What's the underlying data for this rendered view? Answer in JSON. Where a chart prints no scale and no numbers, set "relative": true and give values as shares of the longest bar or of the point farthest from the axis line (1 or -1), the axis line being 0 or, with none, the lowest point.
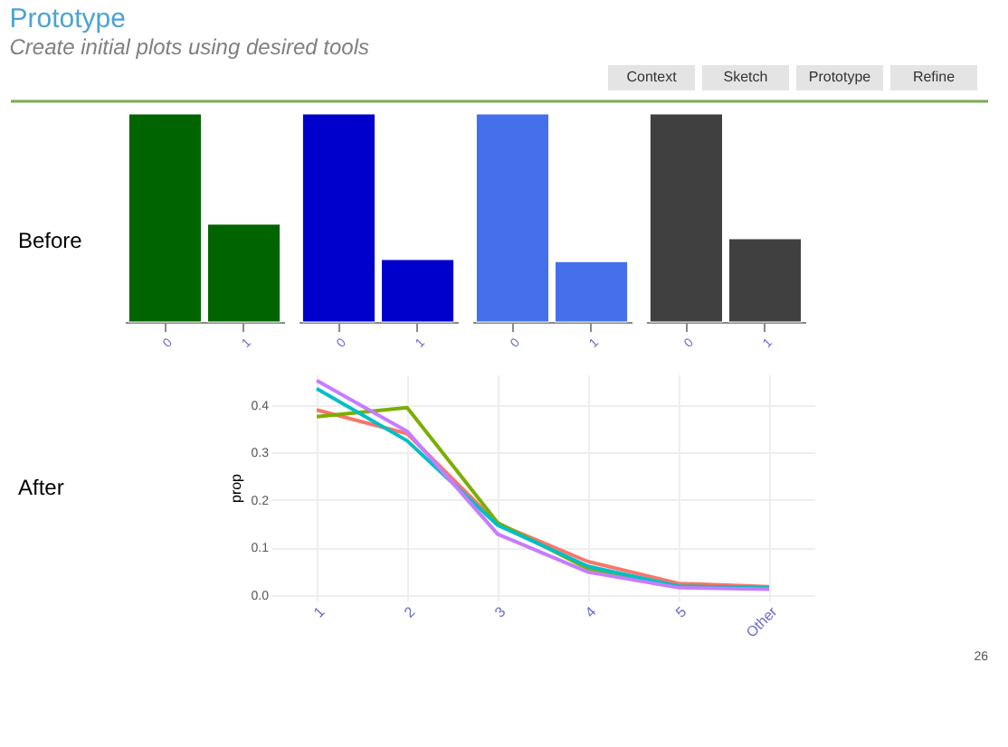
{
  "chart_data": [
    {
      "type": "other",
      "title": "Prototype",
      "subtitle": "Create initial plots using desired tools",
      "annotations": [
        "Context",
        "Sketch",
        "Prototype",
        "Refine",
        "26"
      ]
    },
    {
      "type": "bar",
      "relative": true,
      "categories": [
        "0",
        "1"
      ],
      "values": [
        1,
        0.47
      ],
      "color": "#006400",
      "annotations": [
        "Before"
      ]
    },
    {
      "type": "bar",
      "relative": true,
      "categories": [
        "0",
        "1"
      ],
      "values": [
        1,
        0.3
      ],
      "color": "#0000cd"
    },
    {
      "type": "bar",
      "relative": true,
      "categories": [
        "0",
        "1"
      ],
      "values": [
        1,
        0.29
      ],
      "color": "#4570ec"
    },
    {
      "type": "bar",
      "relative": true,
      "categories": [
        "0",
        "1"
      ],
      "values": [
        1,
        0.4
      ],
      "color": "#404040"
    },
    {
      "type": "line",
      "ylabel": "prop",
      "categories": [
        "1",
        "2",
        "3",
        "4",
        "5",
        "Other"
      ],
      "ylim": [
        -0.012,
        0.465
      ],
      "yticks": [
        {
          "value": 0,
          "label": "0.0"
        },
        {
          "value": 0.1,
          "label": "0.1"
        },
        {
          "value": 0.2,
          "label": "0.2"
        },
        {
          "value": 0.3,
          "label": "0.3"
        },
        {
          "value": 0.4,
          "label": "0.4"
        }
      ],
      "grid": true,
      "line_style": "solid",
      "annotations": [
        "After"
      ],
      "series": [
        {
          "color": "#f8766d",
          "values": [
            0.39,
            0.34,
            0.15,
            0.07,
            0.024,
            0.017
          ]
        },
        {
          "color": "#7cae00",
          "values": [
            0.376,
            0.395,
            0.152,
            0.055,
            0.018,
            0.015
          ]
        },
        {
          "color": "#00bfc4",
          "values": [
            0.435,
            0.325,
            0.147,
            0.06,
            0.018,
            0.014
          ]
        },
        {
          "color": "#c77cff",
          "values": [
            0.452,
            0.345,
            0.128,
            0.048,
            0.015,
            0.012
          ]
        }
      ]
    }
  ]
}
